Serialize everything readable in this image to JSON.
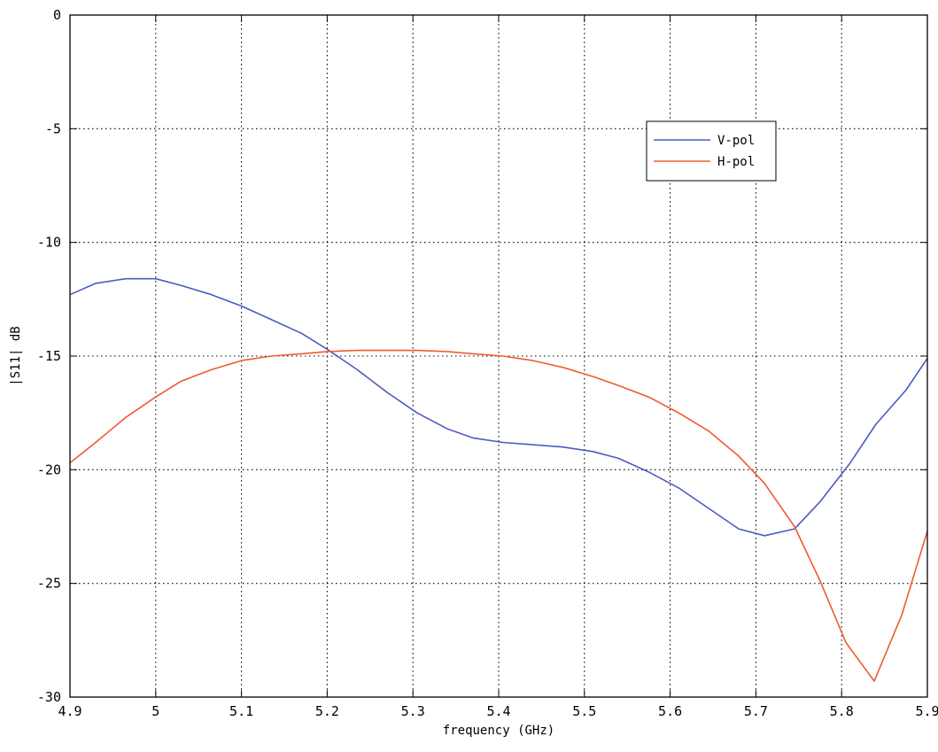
{
  "chart_data": {
    "type": "line",
    "title": "",
    "xlabel": "frequency (GHz)",
    "ylabel": "|S11| dB",
    "xlim": [
      4.9,
      5.9
    ],
    "ylim": [
      -30,
      0
    ],
    "xticks": [
      4.9,
      5.0,
      5.1,
      5.2,
      5.3,
      5.4,
      5.5,
      5.6,
      5.7,
      5.8,
      5.9
    ],
    "xtick_labels": [
      "4.9",
      "5",
      "5.1",
      "5.2",
      "5.3",
      "5.4",
      "5.5",
      "5.6",
      "5.7",
      "5.8",
      "5.9"
    ],
    "yticks": [
      -30,
      -25,
      -20,
      -15,
      -10,
      -5,
      0
    ],
    "ytick_labels": [
      "-30",
      "-25",
      "-20",
      "-15",
      "-10",
      "-5",
      "0"
    ],
    "grid": true,
    "legend_position": "top-right",
    "series": [
      {
        "name": "V-pol",
        "color": "#4a5bc4",
        "x": [
          4.9,
          4.93,
          4.965,
          5.0,
          5.03,
          5.065,
          5.1,
          5.135,
          5.17,
          5.2,
          5.235,
          5.27,
          5.305,
          5.34,
          5.37,
          5.405,
          5.44,
          5.475,
          5.51,
          5.54,
          5.575,
          5.61,
          5.645,
          5.68,
          5.71,
          5.745,
          5.775,
          5.81,
          5.84,
          5.875,
          5.9
        ],
        "y": [
          -12.3,
          -11.8,
          -11.6,
          -11.6,
          -11.9,
          -12.3,
          -12.8,
          -13.4,
          -14.0,
          -14.7,
          -15.6,
          -16.6,
          -17.5,
          -18.2,
          -18.6,
          -18.8,
          -18.9,
          -19.0,
          -19.2,
          -19.5,
          -20.1,
          -20.8,
          -21.7,
          -22.6,
          -22.9,
          -22.6,
          -21.4,
          -19.7,
          -18.0,
          -16.5,
          -15.1
        ]
      },
      {
        "name": "H-pol",
        "color": "#f05a32",
        "x": [
          4.9,
          4.93,
          4.965,
          5.0,
          5.03,
          5.065,
          5.1,
          5.135,
          5.17,
          5.2,
          5.235,
          5.27,
          5.305,
          5.34,
          5.37,
          5.405,
          5.44,
          5.475,
          5.51,
          5.54,
          5.575,
          5.61,
          5.645,
          5.68,
          5.71,
          5.745,
          5.775,
          5.805,
          5.838,
          5.87,
          5.9
        ],
        "y": [
          -19.7,
          -18.8,
          -17.7,
          -16.8,
          -16.1,
          -15.6,
          -15.2,
          -15.0,
          -14.9,
          -14.8,
          -14.75,
          -14.75,
          -14.75,
          -14.8,
          -14.9,
          -15.0,
          -15.2,
          -15.5,
          -15.9,
          -16.3,
          -16.8,
          -17.5,
          -18.3,
          -19.4,
          -20.6,
          -22.5,
          -24.9,
          -27.6,
          -29.3,
          -26.4,
          -22.7
        ]
      }
    ]
  }
}
